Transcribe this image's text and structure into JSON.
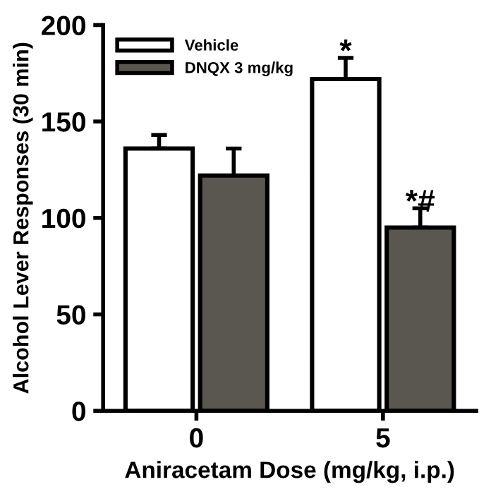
{
  "chart_data": {
    "type": "bar",
    "xlabel": "Aniracetam Dose (mg/kg, i.p.)",
    "ylabel": "Alcohol Lever Responses (30 min)",
    "categories": [
      "0",
      "5"
    ],
    "series": [
      {
        "name": "Vehicle",
        "color": "#ffffff",
        "values": [
          136,
          172
        ],
        "errors": [
          7,
          11
        ]
      },
      {
        "name": "DNQX 3 mg/kg",
        "color": "#5a5650",
        "values": [
          122,
          95
        ],
        "errors": [
          14,
          10
        ]
      }
    ],
    "ylim": [
      0,
      200
    ],
    "yticks": [
      0,
      50,
      100,
      150,
      200
    ],
    "grid": false,
    "legend": "top left",
    "annotations": [
      {
        "text": "*",
        "x": "5",
        "y": 172
      },
      {
        "text": "*#",
        "x": "5",
        "y": 95
      }
    ]
  }
}
